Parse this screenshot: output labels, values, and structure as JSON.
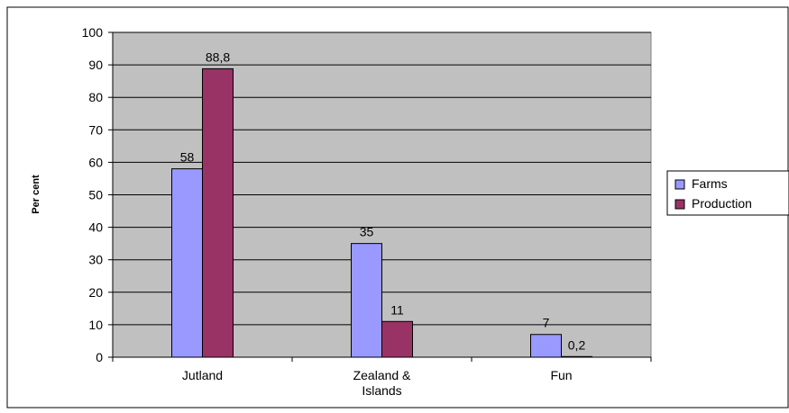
{
  "chart_data": {
    "type": "bar",
    "title": "",
    "xlabel": "",
    "ylabel": "Per cent",
    "categories": [
      "Jutland",
      "Zealand & Islands",
      "Fun"
    ],
    "series": [
      {
        "name": "Farms",
        "values": [
          58,
          35,
          7
        ],
        "labels": [
          "58",
          "35",
          "7"
        ],
        "color": "#9999ff"
      },
      {
        "name": "Production",
        "values": [
          88.8,
          11,
          0.2
        ],
        "labels": [
          "88,8",
          "11",
          "0,2"
        ],
        "color": "#993366"
      }
    ],
    "ylim": [
      0,
      100
    ],
    "yticks": [
      0,
      10,
      20,
      30,
      40,
      50,
      60,
      70,
      80,
      90,
      100
    ],
    "grid": true,
    "legend_position": "right",
    "plot_background": "#c0c0c0"
  }
}
